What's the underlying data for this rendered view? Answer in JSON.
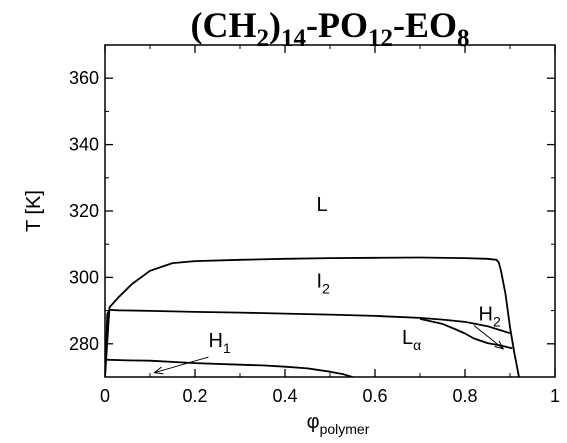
{
  "chart_data": {
    "type": "line",
    "title": {
      "parts": [
        {
          "text": "(CH",
          "sub": false
        },
        {
          "text": "2",
          "sub": true
        },
        {
          "text": ")",
          "sub": false
        },
        {
          "text": "14",
          "sub": true
        },
        {
          "text": "-PO",
          "sub": false
        },
        {
          "text": "12",
          "sub": true
        },
        {
          "text": "-EO",
          "sub": false
        },
        {
          "text": "8",
          "sub": true
        }
      ]
    },
    "xlabel": {
      "main": "φ",
      "sub": "polymer"
    },
    "ylabel": "T [K]",
    "xlim": [
      0,
      1
    ],
    "ylim": [
      270,
      370
    ],
    "xticks": [
      0,
      0.2,
      0.4,
      0.6,
      0.8,
      1
    ],
    "xtick_labels": [
      "0",
      "0.2",
      "0.4",
      "0.6",
      "0.8",
      "1"
    ],
    "yticks": [
      280,
      300,
      320,
      340,
      360
    ],
    "ytick_labels": [
      "280",
      "300",
      "320",
      "340",
      "360"
    ],
    "grid": false,
    "phase_labels": [
      {
        "main": "L",
        "sub": "",
        "x": 0.47,
        "y": 320
      },
      {
        "main": "I",
        "sub": "2",
        "x": 0.47,
        "y": 297
      },
      {
        "main": "H",
        "sub": "2",
        "x": 0.83,
        "y": 287
      },
      {
        "main": "L",
        "sub": "α",
        "x": 0.66,
        "y": 280
      },
      {
        "main": "H",
        "sub": "1",
        "x": 0.23,
        "y": 279
      }
    ],
    "arrows": [
      {
        "name": "h1-arrow",
        "from": [
          0.23,
          276
        ],
        "to": [
          0.11,
          271.3
        ]
      },
      {
        "name": "h2-arrow",
        "from": [
          0.82,
          285.5
        ],
        "to": [
          0.885,
          278.5
        ]
      }
    ],
    "series": [
      {
        "values_x": [
          0.0,
          0.01,
          0.03,
          0.06,
          0.1,
          0.15,
          0.2,
          0.3,
          0.4,
          0.5,
          0.6,
          0.7,
          0.8,
          0.85,
          0.87,
          0.875,
          0.88,
          0.89,
          0.9,
          0.91,
          0.92
        ],
        "values_y": [
          270,
          291,
          294,
          298,
          302,
          304.3,
          304.9,
          305.3,
          305.6,
          305.8,
          305.9,
          306.0,
          305.8,
          305.6,
          305.3,
          304.5,
          302,
          295,
          285,
          277,
          270
        ]
      },
      {
        "values_x": [
          0.0,
          0.005,
          0.01,
          0.03,
          0.1,
          0.2,
          0.3,
          0.4,
          0.5,
          0.6,
          0.7,
          0.75,
          0.8,
          0.85,
          0.9
        ],
        "values_y": [
          270,
          289,
          290.2,
          290.1,
          289.9,
          289.6,
          289.4,
          289.1,
          288.8,
          288.4,
          287.8,
          287.3,
          286.6,
          285.3,
          283.2
        ]
      },
      {
        "values_x": [
          0.7,
          0.75,
          0.78,
          0.8,
          0.82,
          0.85,
          0.88,
          0.905
        ],
        "values_y": [
          287.5,
          286.0,
          284.3,
          283.1,
          281.6,
          280.2,
          279.5,
          278.6
        ]
      },
      {
        "values_x": [
          0.0,
          0.05,
          0.1,
          0.2,
          0.3,
          0.35,
          0.4,
          0.45,
          0.5,
          0.53,
          0.55
        ],
        "values_y": [
          275.2,
          275.0,
          274.9,
          274.2,
          273.7,
          273.5,
          273.1,
          272.6,
          271.6,
          270.8,
          270.0
        ]
      }
    ]
  }
}
